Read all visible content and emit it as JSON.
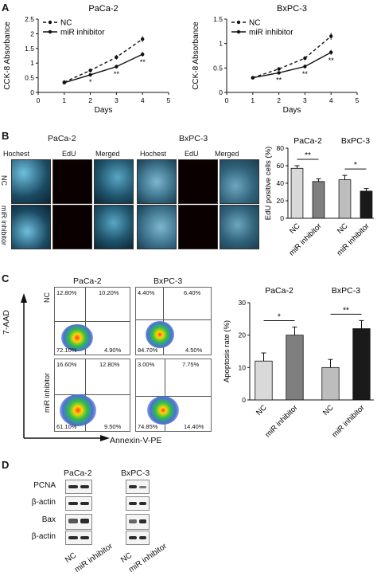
{
  "panels": {
    "A": "A",
    "B": "B",
    "C": "C",
    "D": "D"
  },
  "chart_data": [
    {
      "type": "line",
      "title": "PaCa-2",
      "xlabel": "Days",
      "ylabel": "CCK-8 Absorbance",
      "x": [
        1,
        2,
        3,
        4
      ],
      "xlim": [
        0,
        5
      ],
      "ylim": [
        0,
        2.5
      ],
      "xticks": [
        "0",
        "1",
        "2",
        "3",
        "4",
        "5"
      ],
      "yticks": [
        "0",
        "0.5",
        "1",
        "1.5",
        "2",
        "2.5"
      ],
      "legend": [
        "NC",
        "miR inhibitor"
      ],
      "legend_position": "top-left",
      "series": [
        {
          "name": "NC",
          "values": [
            0.35,
            0.75,
            1.2,
            1.82
          ],
          "errors": [
            0.03,
            0.06,
            0.08,
            0.1
          ],
          "dash": true
        },
        {
          "name": "miR inhibitor",
          "values": [
            0.33,
            0.6,
            0.88,
            1.3
          ],
          "errors": [
            0.03,
            0.05,
            0.06,
            0.08
          ],
          "dash": false
        }
      ],
      "significance": [
        {
          "x": 2,
          "label": "*"
        },
        {
          "x": 3,
          "label": "**"
        },
        {
          "x": 4,
          "label": "**"
        }
      ]
    },
    {
      "type": "line",
      "title": "BxPC-3",
      "xlabel": "Days",
      "ylabel": "CCK-8 Absorbance",
      "x": [
        1,
        2,
        3,
        4
      ],
      "xlim": [
        0,
        5
      ],
      "ylim": [
        0,
        1.5
      ],
      "xticks": [
        "0",
        "1",
        "2",
        "3",
        "4",
        "5"
      ],
      "yticks": [
        "0",
        "0.5",
        "1",
        "1.5"
      ],
      "legend": [
        "NC",
        "miR inhibitor"
      ],
      "legend_position": "top-left",
      "series": [
        {
          "name": "NC",
          "values": [
            0.3,
            0.48,
            0.7,
            1.15
          ],
          "errors": [
            0.02,
            0.03,
            0.04,
            0.07
          ],
          "dash": true
        },
        {
          "name": "miR inhibitor",
          "values": [
            0.3,
            0.4,
            0.53,
            0.82
          ],
          "errors": [
            0.02,
            0.03,
            0.04,
            0.05
          ],
          "dash": false
        }
      ],
      "significance": [
        {
          "x": 2,
          "label": "**"
        },
        {
          "x": 3,
          "label": "**"
        },
        {
          "x": 4,
          "label": "**"
        }
      ]
    },
    {
      "type": "bar",
      "ylabel": "EdU positive cells (%)",
      "ylim": [
        0,
        80
      ],
      "yticks": [
        "0",
        "20",
        "40",
        "60",
        "80"
      ],
      "groups": [
        "PaCa-2",
        "BxPC-3"
      ],
      "categories": [
        "NC",
        "miR inhibitor",
        "NC",
        "miR inhibitor"
      ],
      "values": [
        57,
        42,
        44,
        31
      ],
      "errors": [
        3,
        3,
        5,
        3
      ],
      "colors": [
        "#d9d9d9",
        "#7f7f7f",
        "#bdbdbd",
        "#1a1a1a"
      ],
      "significance": [
        {
          "pair": [
            0,
            1
          ],
          "label": "**"
        },
        {
          "pair": [
            2,
            3
          ],
          "label": "*"
        }
      ]
    },
    {
      "type": "bar",
      "ylabel": "Apoptosis rate (%)",
      "ylim": [
        0,
        30
      ],
      "yticks": [
        "0",
        "10",
        "20",
        "30"
      ],
      "groups": [
        "PaCa-2",
        "BxPC-3"
      ],
      "categories": [
        "NC",
        "miR inhibitor",
        "NC",
        "miR inhibitor"
      ],
      "values": [
        12,
        20,
        10,
        22
      ],
      "errors": [
        2.5,
        2.5,
        2.5,
        2.5
      ],
      "colors": [
        "#d9d9d9",
        "#7f7f7f",
        "#bdbdbd",
        "#1a1a1a"
      ],
      "significance": [
        {
          "pair": [
            0,
            1
          ],
          "label": "*"
        },
        {
          "pair": [
            2,
            3
          ],
          "label": "**"
        }
      ]
    }
  ],
  "panelB": {
    "cell_lines": [
      "PaCa-2",
      "BxPC-3"
    ],
    "columns": [
      "Hochest",
      "EdU",
      "Merged"
    ],
    "rows": [
      "NC",
      "miR inhibitor"
    ]
  },
  "panelC": {
    "cell_lines": [
      "PaCa-2",
      "BxPC-3"
    ],
    "rows": [
      "NC",
      "miR inhibitor"
    ],
    "xaxis": "Annexin-V-PE",
    "yaxis": "7-AAD",
    "quadrants": [
      [
        "12.80%",
        "10.20%",
        "72.10%",
        "4.90%"
      ],
      [
        "4.40%",
        "6.40%",
        "84.70%",
        "4.50%"
      ],
      [
        "16.60%",
        "12.80%",
        "61.10%",
        "9.50%"
      ],
      [
        "3.00%",
        "7.75%",
        "74.85%",
        "14.40%"
      ]
    ]
  },
  "panelD": {
    "cell_lines": [
      "PaCa-2",
      "BxPC-3"
    ],
    "proteins": [
      "PCNA",
      "β-actin",
      "Bax",
      "β-actin"
    ],
    "lanes": [
      "NC",
      "miR inhibitor"
    ]
  }
}
